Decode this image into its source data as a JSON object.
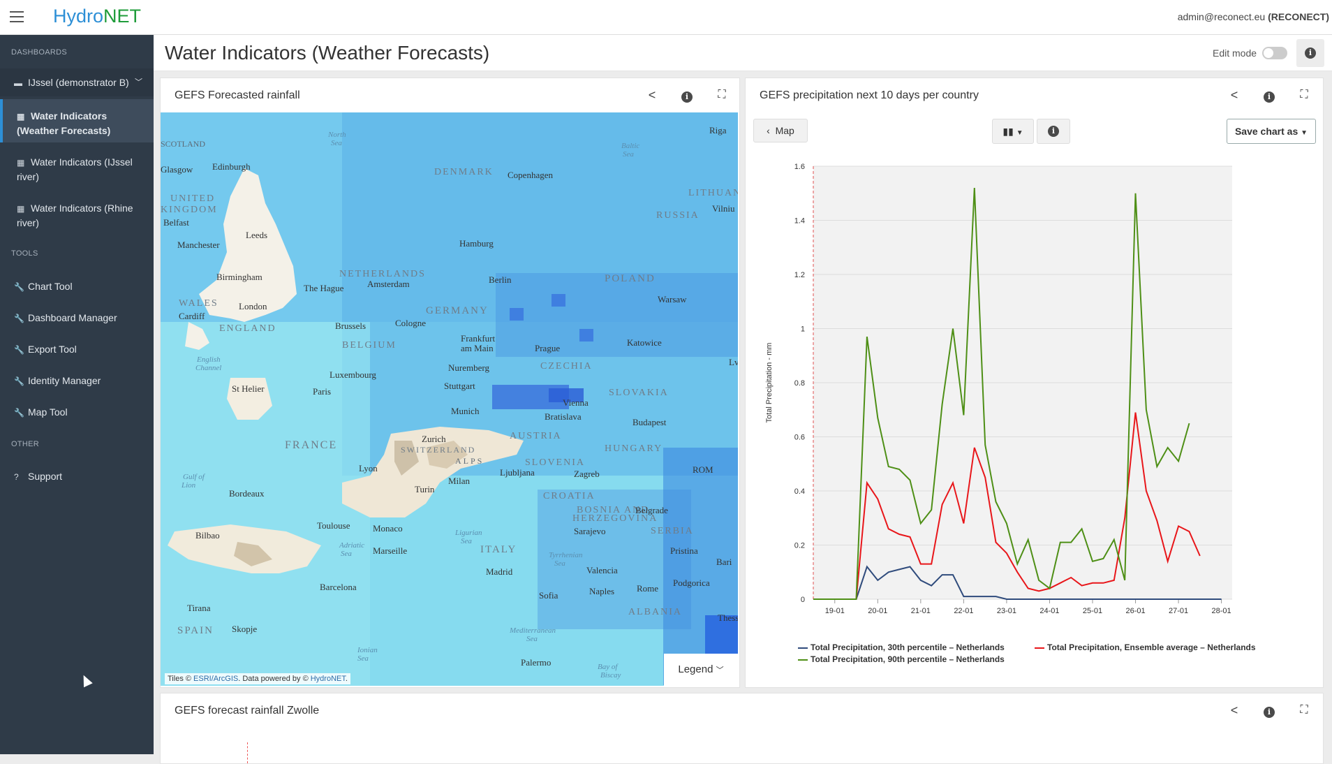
{
  "app": {
    "logo_main": "Hydro",
    "logo_accent": "NET",
    "user": "admin@reconect.eu",
    "org": "(RECONECT)"
  },
  "sidebar": {
    "sections": {
      "dashboards": "DASHBOARDS",
      "tools": "TOOLS",
      "other": "OTHER"
    },
    "group": "IJssel (demonstrator B)",
    "dashboards": [
      {
        "label1": "Water Indicators",
        "label2": "(Weather Forecasts)"
      },
      {
        "label1": "Water Indicators (IJssel",
        "label2": "river)"
      },
      {
        "label1": "Water Indicators (Rhine",
        "label2": "river)"
      }
    ],
    "tools": [
      "Chart Tool",
      "Dashboard Manager",
      "Export Tool",
      "Identity Manager",
      "Map Tool"
    ],
    "other": [
      "Support"
    ]
  },
  "header": {
    "title": "Water Indicators (Weather Forecasts)",
    "edit_mode": "Edit mode"
  },
  "panels": {
    "map": {
      "title": "GEFS Forecasted rainfall",
      "attrib_pre": "Tiles © ",
      "attrib_link1": "ESRI/ArcGIS",
      "attrib_mid": ". Data powered by © ",
      "attrib_link2": "HydroNET",
      "attrib_post": ".",
      "legend": "Legend"
    },
    "chart": {
      "title": "GEFS precipitation next 10 days per country",
      "map_btn": "Map",
      "save_btn": "Save chart as"
    },
    "bottom": {
      "title": "GEFS forecast rainfall Zwolle"
    }
  },
  "map_labels": {
    "countries": [
      "UNITED",
      "KINGDOM",
      "DENMARK",
      "LITHUAN",
      "RUSSIA",
      "POLAND",
      "NETHERLANDS",
      "GERMANY",
      "BELGIUM",
      "CZECHIA",
      "SLOVAKIA",
      "AUSTRIA",
      "HUNGARY",
      "FRANCE",
      "SWITZERLAND",
      "SLOVENIA",
      "CROATIA",
      "BOSNIA AND",
      "HERZEGOVINA",
      "SERBIA",
      "ROM",
      "ITALY",
      "ALBANIA",
      "SPAIN",
      "WALES",
      "ENGLAND",
      "SCOTLAND"
    ],
    "cities": [
      "Edinburgh",
      "Glasgow",
      "Belfast",
      "Leeds",
      "Manchester",
      "Birmingham",
      "London",
      "Cardiff",
      "St Helier",
      "Riga",
      "Vilniu",
      "Copenhagen",
      "Hamburg",
      "Berlin",
      "Warsaw",
      "The Hague",
      "Amsterdam",
      "Brussels",
      "Cologne",
      "Frankfurt",
      "am Main",
      "Prague",
      "Katowice",
      "Luxembourg",
      "Paris",
      "Nuremberg",
      "Stuttgart",
      "Munich",
      "Vienna",
      "Bratislava",
      "Budapest",
      "Zurich",
      "Lyon",
      "Ljubljana",
      "Zagreb",
      "Milan",
      "Turin",
      "Bordeaux",
      "Belgrade",
      "Sarajevo",
      "Pristina",
      "Monaco",
      "Marseille",
      "Toulouse",
      "Bilbao",
      "Barcelona",
      "Madrid",
      "Valencia",
      "Rome",
      "Podgorica",
      "Tirana",
      "Skopje",
      "Sofia",
      "Naples",
      "Bari",
      "Thessalo",
      "Palermo",
      "Lv"
    ],
    "seas": [
      "North",
      "Sea",
      "Baltic",
      "Sea",
      "English",
      "Channel",
      "Bay of",
      "Biscay",
      "Ligurian",
      "Sea",
      "Adriatic",
      "Sea",
      "Tyrrhenian",
      "Sea",
      "Mediterranean",
      "Sea",
      "Ionian",
      "Sea",
      "Gulf of",
      "Lion",
      "ALPS"
    ]
  },
  "chart_data": {
    "type": "line",
    "ylabel": "Total Precipitation - mm",
    "xlabel": "",
    "ylim": [
      0,
      1.6
    ],
    "yticks": [
      "0",
      "0.2",
      "0.4",
      "0.6",
      "0.8",
      "1",
      "1.2",
      "1.4",
      "1.6"
    ],
    "xticks": [
      "19-01",
      "20-01",
      "21-01",
      "22-01",
      "23-01",
      "24-01",
      "25-01",
      "26-01",
      "27-01",
      "28-01"
    ],
    "x_tick_days": [
      19,
      20,
      21,
      22,
      23,
      24,
      25,
      26,
      27,
      28
    ],
    "x_range_days": [
      18.5,
      28.25
    ],
    "now_marker_day": 18.5,
    "grid": true,
    "legend_position": "bottom",
    "x_days": [
      18.5,
      18.75,
      19.0,
      19.25,
      19.5,
      19.75,
      20.0,
      20.25,
      20.5,
      20.75,
      21.0,
      21.25,
      21.5,
      21.75,
      22.0,
      22.25,
      22.5,
      22.75,
      23.0,
      23.25,
      23.5,
      23.75,
      24.0,
      24.25,
      24.5,
      24.75,
      25.0,
      25.25,
      25.5,
      25.75,
      26.0,
      26.25,
      26.5,
      26.75,
      27.0,
      27.25,
      27.5,
      27.75,
      28.0
    ],
    "series": [
      {
        "name": "Total Precipitation, 30th percentile – Netherlands",
        "color": "#2f4b7c",
        "values": [
          0,
          0,
          0,
          0,
          0,
          0.12,
          0.07,
          0.1,
          0.11,
          0.12,
          0.07,
          0.05,
          0.09,
          0.09,
          0.01,
          0.01,
          0.01,
          0.01,
          0,
          0,
          0,
          0,
          0,
          0,
          0,
          0,
          0,
          0,
          0,
          0,
          0,
          0,
          0,
          0,
          0,
          0,
          0,
          0,
          0
        ]
      },
      {
        "name": "Total Precipitation, Ensemble average – Netherlands",
        "color": "#e8161a",
        "values": [
          0,
          0,
          0,
          0,
          0,
          0.43,
          0.37,
          0.26,
          0.24,
          0.23,
          0.13,
          0.13,
          0.35,
          0.43,
          0.28,
          0.56,
          0.45,
          0.21,
          0.17,
          0.1,
          0.04,
          0.03,
          0.04,
          0.06,
          0.08,
          0.05,
          0.06,
          0.06,
          0.07,
          0.3,
          0.69,
          0.4,
          0.29,
          0.14,
          0.27,
          0.25,
          0.16,
          null,
          null
        ]
      },
      {
        "name": "Total Precipitation, 90th percentile – Netherlands",
        "color": "#4e8f16",
        "values": [
          0,
          0,
          0,
          0,
          0,
          0.97,
          0.67,
          0.49,
          0.48,
          0.44,
          0.28,
          0.33,
          0.72,
          1.0,
          0.68,
          1.52,
          0.57,
          0.36,
          0.28,
          0.13,
          0.22,
          0.07,
          0.04,
          0.21,
          0.21,
          0.26,
          0.14,
          0.15,
          0.22,
          0.07,
          1.5,
          0.7,
          0.49,
          0.56,
          0.51,
          0.65,
          null,
          null,
          null
        ]
      }
    ]
  },
  "colors": {
    "sidebar": "#2f3b48",
    "active": "#3e4c5c",
    "accent_blue": "#2d8fd6",
    "accent_green": "#1f9c3a"
  }
}
